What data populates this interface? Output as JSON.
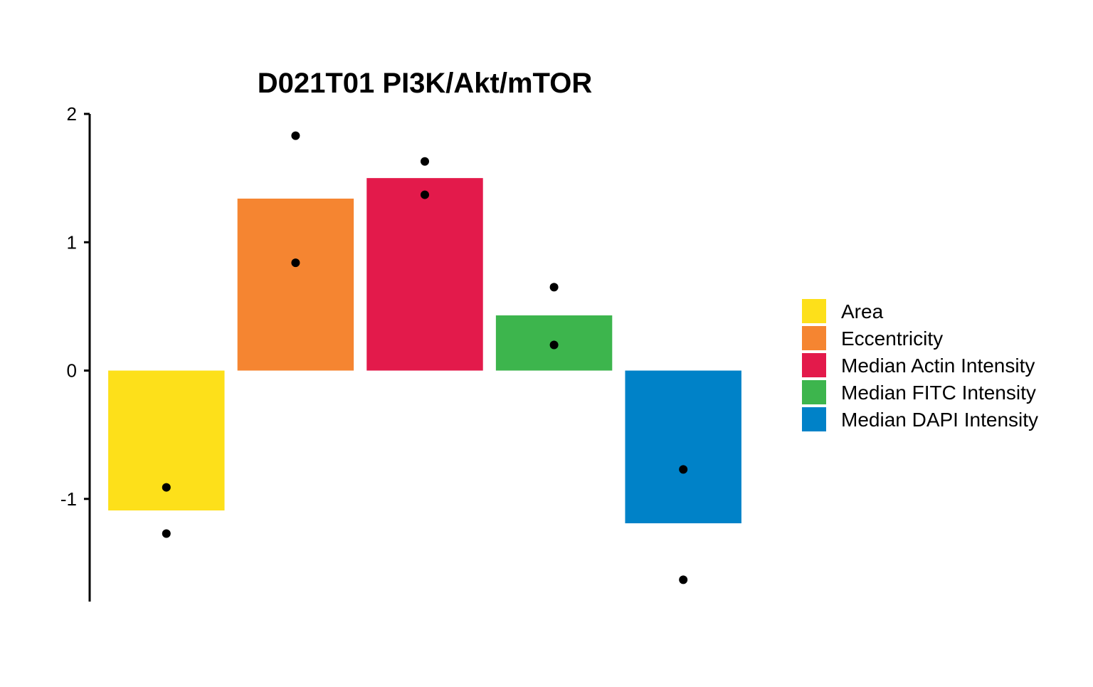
{
  "chart_data": {
    "type": "bar",
    "title": "D021T01 PI3K/Akt/mTOR",
    "xlabel": "",
    "ylabel": "",
    "ylim": [
      -1.8,
      2.0
    ],
    "yticks": [
      -1,
      0,
      1,
      2
    ],
    "grid": false,
    "legend_position": "right",
    "categories": [
      "Area",
      "Eccentricity",
      "Median Actin Intensity",
      "Median FITC Intensity",
      "Median DAPI Intensity"
    ],
    "values": [
      -1.09,
      1.34,
      1.5,
      0.43,
      -1.19
    ],
    "colors": [
      "#FDE01A",
      "#F58531",
      "#E31A4B",
      "#3DB54D",
      "#0082C8"
    ],
    "points": [
      [
        -0.91,
        -1.27
      ],
      [
        1.83,
        0.84
      ],
      [
        1.63,
        1.37
      ],
      [
        0.65,
        0.2
      ],
      [
        -0.77,
        -1.63
      ]
    ],
    "legend": [
      "Area",
      "Eccentricity",
      "Median Actin Intensity",
      "Median FITC Intensity",
      "Median DAPI Intensity"
    ]
  }
}
